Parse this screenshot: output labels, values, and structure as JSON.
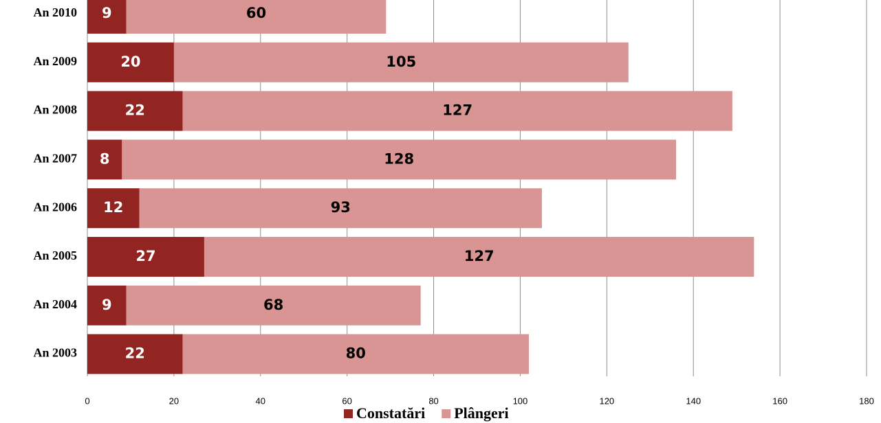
{
  "chart_data": {
    "type": "stacked-bar-horizontal",
    "categories": [
      "An 2010",
      "An 2009",
      "An 2008",
      "An 2007",
      "An 2006",
      "An 2005",
      "An 2004",
      "An 2003"
    ],
    "series": [
      {
        "name": "Constatări",
        "color": "#922521",
        "values": [
          9,
          20,
          22,
          8,
          12,
          27,
          9,
          22
        ]
      },
      {
        "name": "Plângeri",
        "color": "#d99594",
        "values": [
          60,
          105,
          127,
          128,
          93,
          127,
          68,
          80
        ]
      }
    ],
    "xlim": [
      0,
      180
    ],
    "xticks": [
      0,
      20,
      40,
      60,
      80,
      100,
      120,
      140,
      160,
      180
    ],
    "grid": true,
    "legend": "bottom"
  }
}
